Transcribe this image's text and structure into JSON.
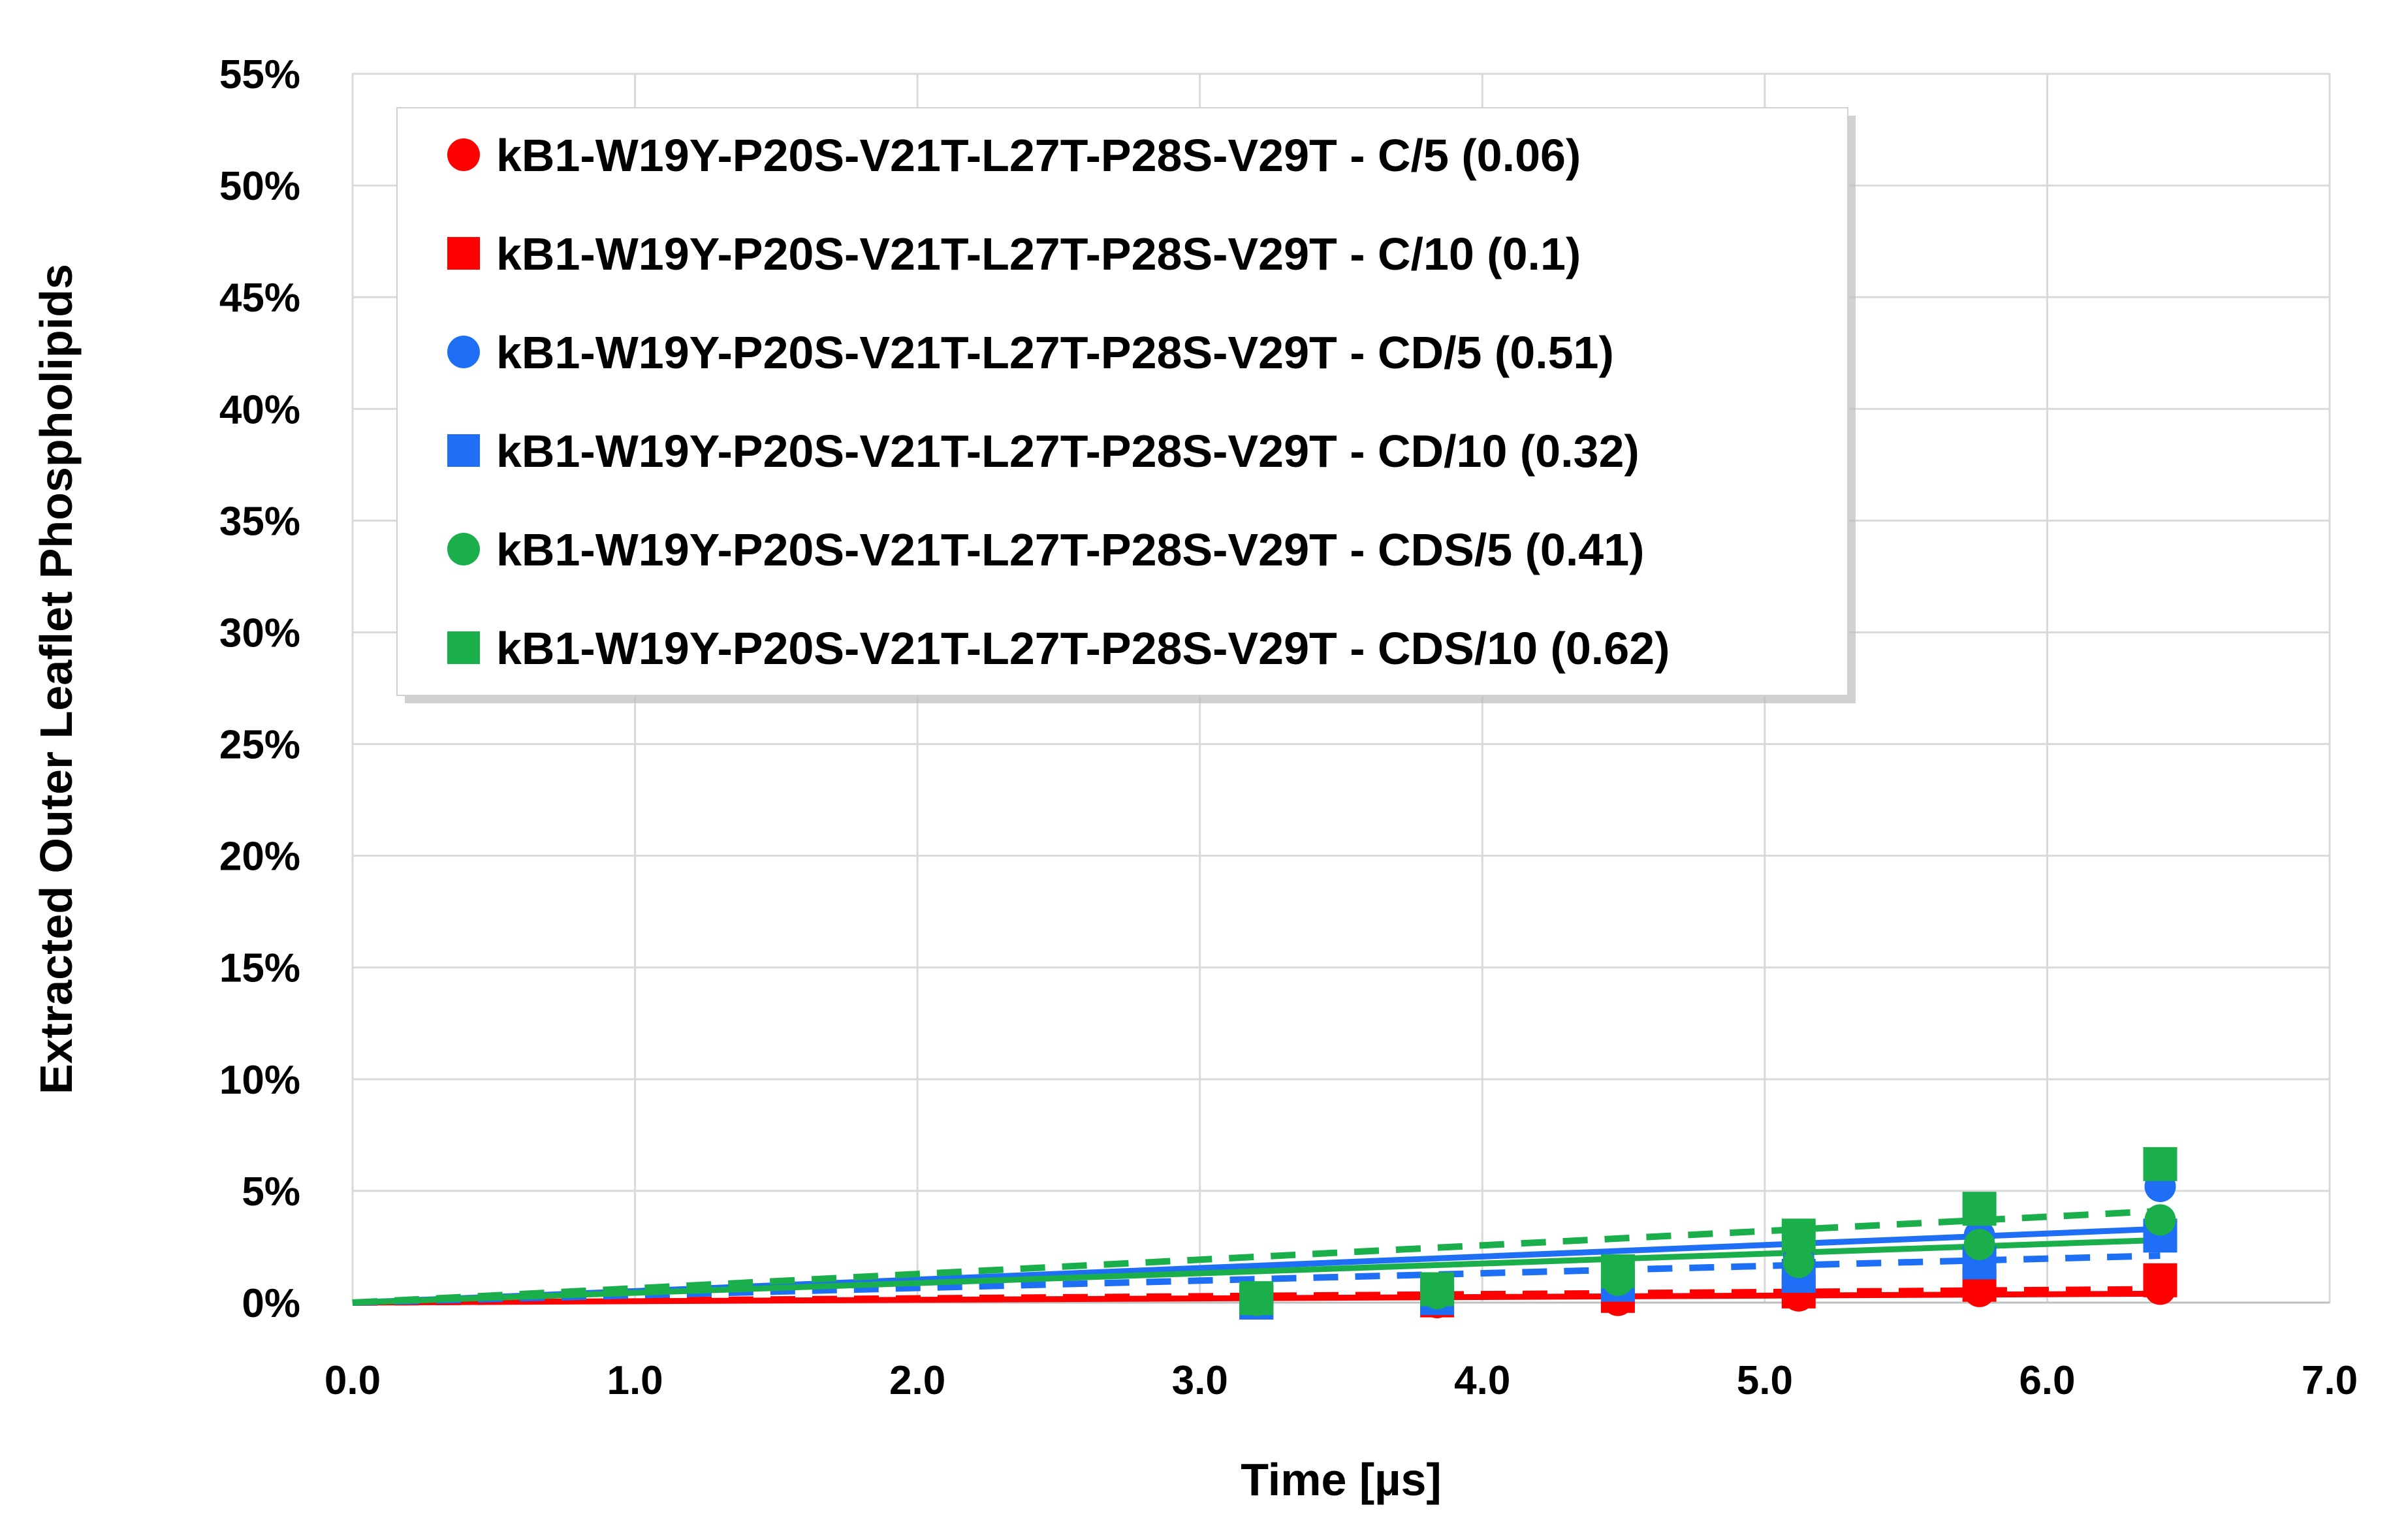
{
  "chart_data": {
    "type": "scatter",
    "title": "",
    "xlabel": "Time [µs]",
    "ylabel": "Extracted Outer Leaflet Phospholipids",
    "xlim": [
      0,
      7
    ],
    "ylim": [
      0,
      0.55
    ],
    "x_ticks": [
      "0.0",
      "1.0",
      "2.0",
      "3.0",
      "4.0",
      "5.0",
      "6.0",
      "7.0"
    ],
    "y_ticks": [
      "0%",
      "5%",
      "10%",
      "15%",
      "20%",
      "25%",
      "30%",
      "35%",
      "40%",
      "45%",
      "50%",
      "55%"
    ],
    "grid": true,
    "legend_position": "top-left",
    "series": [
      {
        "name": "kB1-W19Y-P20S-V21T-L27T-P28S-V29T - C/5 (0.06)",
        "color": "#ff0000",
        "marker": "circle",
        "trend_line": "solid",
        "x": [
          3.2,
          3.84,
          4.48,
          5.12,
          5.76,
          6.4
        ],
        "y": [
          0.0,
          0.0,
          0.001,
          0.003,
          0.005,
          0.006
        ],
        "trend_end": [
          6.4,
          0.004
        ]
      },
      {
        "name": "kB1-W19Y-P20S-V21T-L27T-P28S-V29T - C/10 (0.1)",
        "color": "#ff0000",
        "marker": "square",
        "trend_line": "dashed",
        "x": [
          3.2,
          3.84,
          4.48,
          5.12,
          5.76,
          6.4
        ],
        "y": [
          0.0,
          0.001,
          0.003,
          0.005,
          0.008,
          0.01
        ],
        "trend_end": [
          6.4,
          0.006
        ]
      },
      {
        "name": "kB1-W19Y-P20S-V21T-L27T-P28S-V29T - CD/5 (0.51)",
        "color": "#1e6ff5",
        "marker": "circle",
        "trend_line": "solid",
        "x": [
          3.2,
          3.84,
          4.48,
          5.12,
          5.76,
          6.4
        ],
        "y": [
          0.002,
          0.005,
          0.012,
          0.02,
          0.03,
          0.052
        ],
        "trend_end": [
          6.4,
          0.033
        ]
      },
      {
        "name": "kB1-W19Y-P20S-V21T-L27T-P28S-V29T - CD/10 (0.32)",
        "color": "#1e6ff5",
        "marker": "square",
        "trend_line": "dashed",
        "x": [
          3.2,
          3.84,
          4.48,
          5.12,
          5.76,
          6.4
        ],
        "y": [
          0.0,
          0.002,
          0.008,
          0.012,
          0.018,
          0.03
        ],
        "trend_end": [
          6.4,
          0.021
        ]
      },
      {
        "name": "kB1-W19Y-P20S-V21T-L27T-P28S-V29T - CDS/5 (0.41)",
        "color": "#1aaf4b",
        "marker": "circle",
        "trend_line": "solid",
        "x": [
          3.2,
          3.84,
          4.48,
          5.12,
          5.76,
          6.4
        ],
        "y": [
          0.001,
          0.004,
          0.01,
          0.018,
          0.026,
          0.037
        ],
        "trend_end": [
          6.4,
          0.028
        ]
      },
      {
        "name": "kB1-W19Y-P20S-V21T-L27T-P28S-V29T - CDS/10 (0.62)",
        "color": "#1aaf4b",
        "marker": "square",
        "trend_line": "dashed",
        "x": [
          3.2,
          3.84,
          4.48,
          5.12,
          5.76,
          6.4
        ],
        "y": [
          0.002,
          0.006,
          0.014,
          0.03,
          0.042,
          0.062
        ],
        "trend_end": [
          6.4,
          0.041
        ]
      }
    ]
  }
}
